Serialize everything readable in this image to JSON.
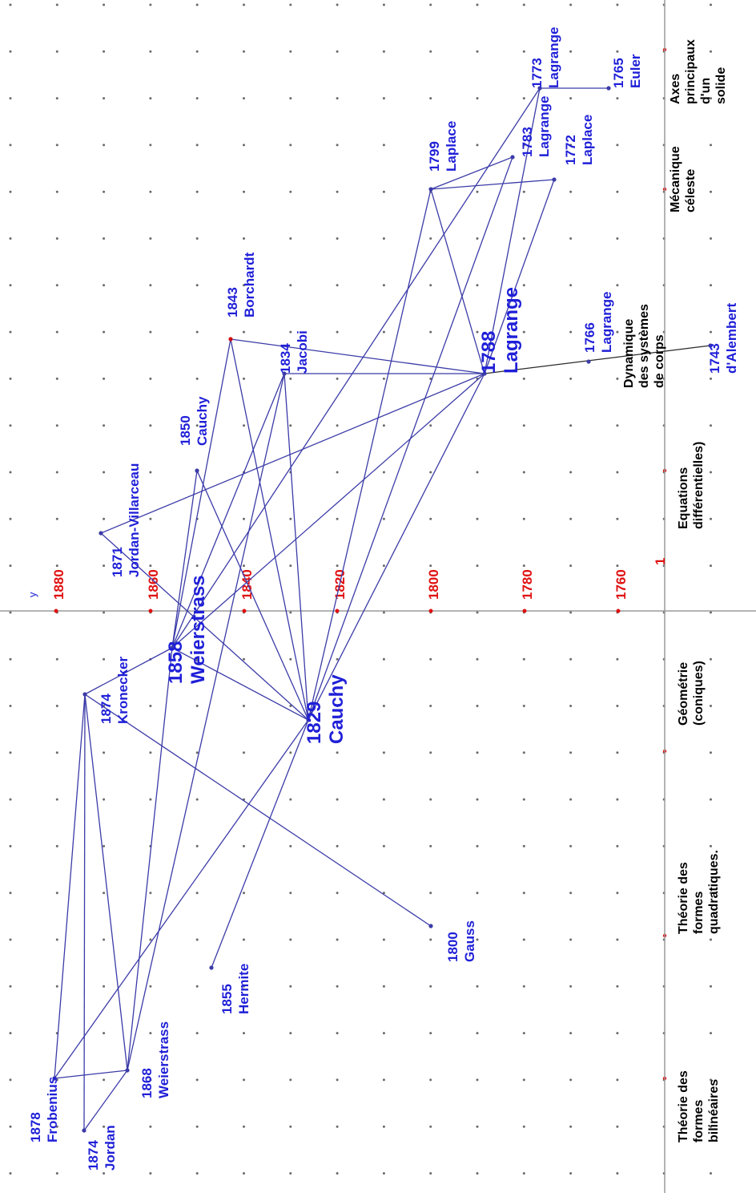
{
  "axis": {
    "y_name": "y",
    "x_unit_label": "1",
    "year_ticks": [
      "1880",
      "1860",
      "1840",
      "1820",
      "1800",
      "1780",
      "1760"
    ]
  },
  "topics": [
    [
      "Axes",
      "principaux",
      "d'un",
      "solide"
    ],
    [
      "Mécanique",
      "céleste"
    ],
    [
      "Dynamique",
      "des systèmes",
      "de corps"
    ],
    [
      "Equations",
      "différentielles)"
    ],
    [
      "Géométrie",
      "(coniques)"
    ],
    [
      "Théorie des",
      "formes",
      "quadratiques."
    ],
    [
      "Théorie des",
      "formes",
      "bilinéaires"
    ]
  ],
  "nodes": [
    {
      "id": "euler1765",
      "year": "1765",
      "name": "Euler"
    },
    {
      "id": "lagrange1773",
      "year": "1773",
      "name": "Lagrange"
    },
    {
      "id": "laplace1772",
      "year": "1772",
      "name": "Laplace"
    },
    {
      "id": "lagrange1783",
      "year": "1783",
      "name": "Lagrange"
    },
    {
      "id": "laplace1799",
      "year": "1799",
      "name": "Laplace"
    },
    {
      "id": "lagrange1788",
      "year": "1788",
      "name": "Lagrange"
    },
    {
      "id": "lagrange1766",
      "year": "1766",
      "name": "Lagrange"
    },
    {
      "id": "dalembert1743",
      "year": "1743",
      "name": "d'Alembert"
    },
    {
      "id": "borchardt1843",
      "year": "1843",
      "name": "Borchardt"
    },
    {
      "id": "jacobi1834",
      "year": "1834",
      "name": "Jacobi"
    },
    {
      "id": "cauchy1850",
      "year": "1850",
      "name": "Cauchy"
    },
    {
      "id": "jordanvillarceau1871",
      "year": "1871",
      "name": "Jordan-Villarceau"
    },
    {
      "id": "cauchy1829",
      "year": "1829",
      "name": "Cauchy"
    },
    {
      "id": "weierstrass1858",
      "year": "1858",
      "name": "Weierstrass"
    },
    {
      "id": "kronecker1874",
      "year": "1874",
      "name": "Kronecker"
    },
    {
      "id": "gauss1800",
      "year": "1800",
      "name": "Gauss"
    },
    {
      "id": "hermite1855",
      "year": "1855",
      "name": "Hermite"
    },
    {
      "id": "frobenius1878",
      "year": "1878",
      "name": "Frobenius"
    },
    {
      "id": "weierstrass1868",
      "year": "1868",
      "name": "Weierstrass"
    },
    {
      "id": "jordan1874",
      "year": "1874",
      "name": "Jordan"
    }
  ],
  "edges": [
    [
      "euler1765",
      "lagrange1773"
    ],
    [
      "lagrange1773",
      "lagrange1788"
    ],
    [
      "laplace1772",
      "laplace1799"
    ],
    [
      "laplace1772",
      "lagrange1788"
    ],
    [
      "laplace1799",
      "lagrange1783"
    ],
    [
      "laplace1799",
      "lagrange1788"
    ],
    [
      "laplace1799",
      "cauchy1829"
    ],
    [
      "lagrange1783",
      "cauchy1829"
    ],
    [
      "lagrange1773",
      "weierstrass1858"
    ],
    [
      "lagrange1788",
      "dalembert1743"
    ],
    [
      "lagrange1788",
      "borchardt1843"
    ],
    [
      "lagrange1788",
      "jacobi1834"
    ],
    [
      "lagrange1788",
      "jordanvillarceau1871"
    ],
    [
      "lagrange1788",
      "cauchy1829"
    ],
    [
      "lagrange1788",
      "weierstrass1858"
    ],
    [
      "borchardt1843",
      "cauchy1829"
    ],
    [
      "borchardt1843",
      "weierstrass1858"
    ],
    [
      "jacobi1834",
      "cauchy1829"
    ],
    [
      "jacobi1834",
      "weierstrass1858"
    ],
    [
      "jacobi1834",
      "weierstrass1868"
    ],
    [
      "cauchy1850",
      "cauchy1829"
    ],
    [
      "cauchy1850",
      "weierstrass1858"
    ],
    [
      "cauchy1829",
      "weierstrass1858"
    ],
    [
      "cauchy1829",
      "jordanvillarceau1871"
    ],
    [
      "cauchy1829",
      "hermite1855"
    ],
    [
      "cauchy1829",
      "frobenius1878"
    ],
    [
      "weierstrass1858",
      "kronecker1874"
    ],
    [
      "weierstrass1858",
      "weierstrass1868"
    ],
    [
      "kronecker1874",
      "gauss1800"
    ],
    [
      "kronecker1874",
      "frobenius1878"
    ],
    [
      "kronecker1874",
      "weierstrass1868"
    ],
    [
      "kronecker1874",
      "jordan1874"
    ],
    [
      "frobenius1878",
      "weierstrass1868"
    ],
    [
      "jordan1874",
      "weierstrass1868"
    ]
  ],
  "colors": {
    "edge": "#3b3ba8",
    "node_label": "#1f1fd8",
    "tick_label": "#e01010",
    "grid_dot": "#6a6a6a",
    "axis": "#9a9a9a",
    "topic_text": "#000000"
  }
}
